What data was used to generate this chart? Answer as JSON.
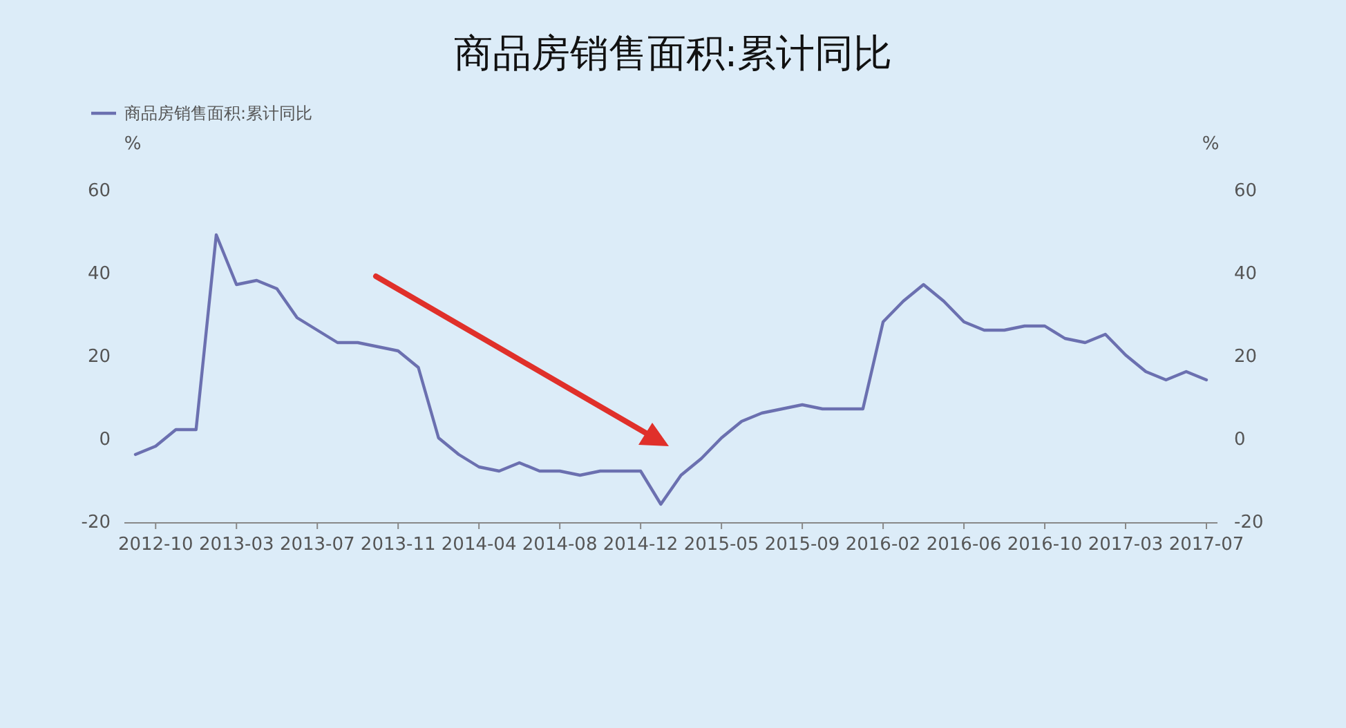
{
  "chart_data": {
    "type": "line",
    "title": "商品房销售面积:累计同比",
    "ylabel": "%",
    "y2label": "%",
    "categories": [
      null,
      "2012-10",
      null,
      null,
      null,
      "2013-03",
      null,
      null,
      null,
      "2013-07",
      null,
      null,
      null,
      "2013-11",
      null,
      null,
      null,
      "2014-04",
      null,
      null,
      null,
      "2014-08",
      null,
      null,
      null,
      "2014-12",
      null,
      null,
      null,
      "2015-05",
      null,
      null,
      null,
      "2015-09",
      null,
      null,
      null,
      "2016-02",
      null,
      null,
      null,
      "2016-06",
      null,
      null,
      null,
      "2016-10",
      null,
      null,
      null,
      "2017-03",
      null,
      null,
      null,
      "2017-07"
    ],
    "series": [
      {
        "name": "商品房销售面积:累计同比",
        "color": "#6b70b0",
        "values": [
          -4,
          -2,
          2,
          2,
          49,
          37,
          38,
          36,
          29,
          26,
          23,
          23,
          22,
          21,
          17,
          0,
          -4,
          -7,
          -8,
          -6,
          -8,
          -8,
          -9,
          -8,
          -8,
          -8,
          -16,
          -9,
          -5,
          0,
          4,
          6,
          7,
          8,
          7,
          7,
          7,
          28,
          33,
          37,
          33,
          28,
          26,
          26,
          27,
          27,
          24,
          23,
          25,
          20,
          16,
          14,
          16,
          14
        ]
      }
    ],
    "ylim": [
      -20,
      60
    ],
    "yticks": [
      -20,
      0,
      20,
      40,
      60
    ],
    "y2lim": [
      -20,
      60
    ],
    "y2ticks": [
      -20,
      0,
      20,
      40,
      60
    ],
    "legend": "top left"
  }
}
